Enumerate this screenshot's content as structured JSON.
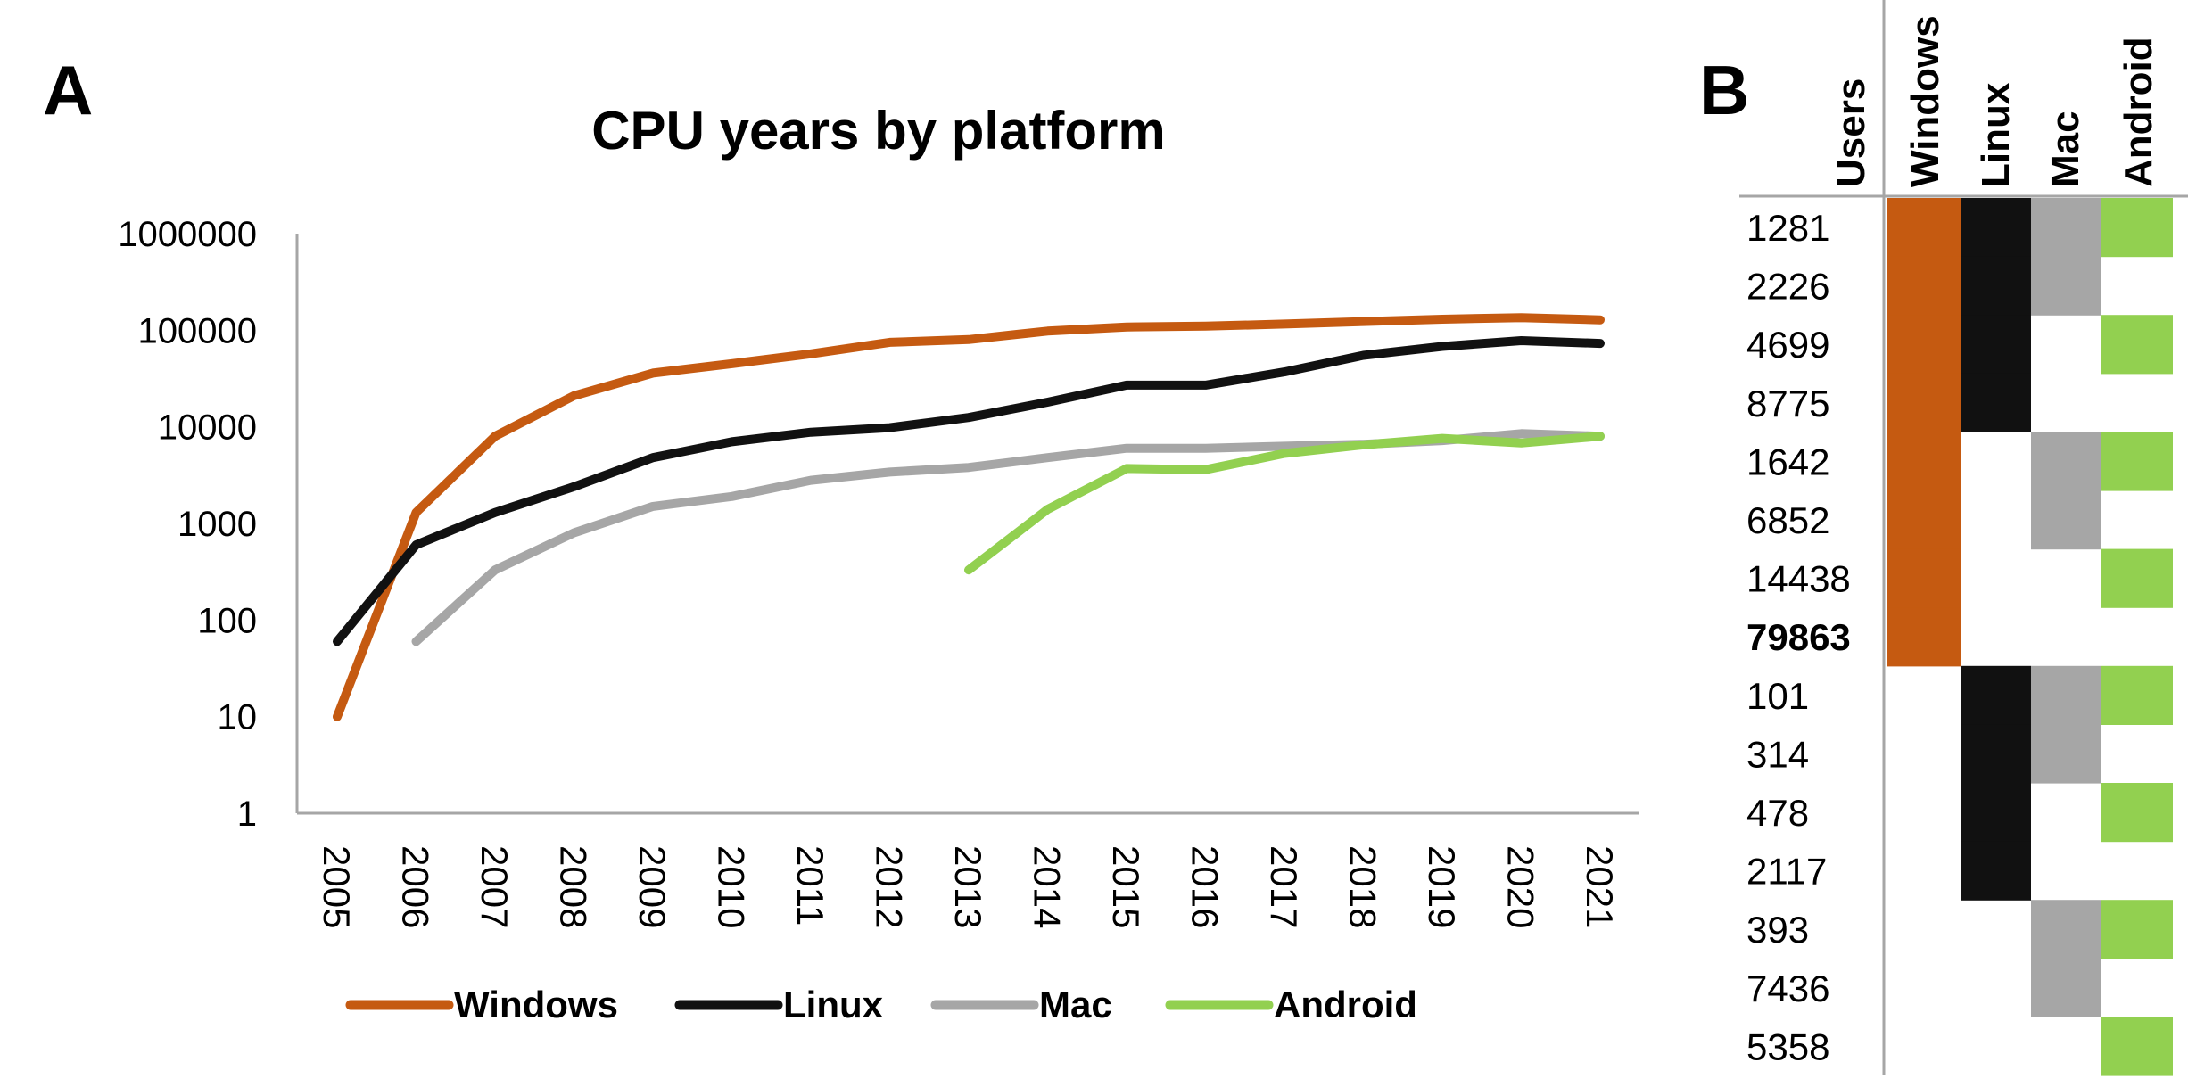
{
  "chart_data": [
    {
      "panel_label": "A",
      "type": "line",
      "title": "CPU years by platform",
      "xlabel": "",
      "ylabel": "",
      "y_scale": "log",
      "ylim": [
        1,
        1000000
      ],
      "y_ticks": [
        "1",
        "10",
        "100",
        "1000",
        "10000",
        "100000",
        "1000000"
      ],
      "x": [
        "2005",
        "2006",
        "2007",
        "2008",
        "2009",
        "2010",
        "2011",
        "2012",
        "2013",
        "2014",
        "2015",
        "2016",
        "2017",
        "2018",
        "2019",
        "2020",
        "2021"
      ],
      "grid": false,
      "legend_position": "bottom",
      "series": [
        {
          "name": "Windows",
          "color": "#C55A11",
          "values": [
            10,
            1300,
            8000,
            21000,
            36000,
            45000,
            57000,
            75000,
            80000,
            98000,
            108000,
            110000,
            116000,
            123000,
            130000,
            135000,
            128000
          ]
        },
        {
          "name": "Linux",
          "color": "#111111",
          "values": [
            60,
            600,
            1300,
            2400,
            4800,
            7000,
            8800,
            9800,
            12500,
            18000,
            27000,
            27000,
            37000,
            55000,
            68000,
            78000,
            73000
          ]
        },
        {
          "name": "Mac",
          "color": "#A6A6A6",
          "values": [
            null,
            60,
            330,
            800,
            1500,
            1900,
            2800,
            3400,
            3800,
            4800,
            6000,
            6000,
            6300,
            6600,
            7200,
            8500,
            8000
          ]
        },
        {
          "name": "Android",
          "color": "#92D050",
          "values": [
            null,
            null,
            null,
            null,
            null,
            null,
            null,
            null,
            330,
            1400,
            3700,
            3600,
            5300,
            6500,
            7600,
            6800,
            8000
          ]
        }
      ]
    },
    {
      "panel_label": "B",
      "type": "table",
      "columns": [
        "Users",
        "Windows",
        "Linux",
        "Mac",
        "Android"
      ],
      "rows": [
        {
          "users": "1281",
          "windows": true,
          "linux": true,
          "mac": true,
          "android": true
        },
        {
          "users": "2226",
          "windows": true,
          "linux": true,
          "mac": true,
          "android": false
        },
        {
          "users": "4699",
          "windows": true,
          "linux": true,
          "mac": false,
          "android": true
        },
        {
          "users": "8775",
          "windows": true,
          "linux": true,
          "mac": false,
          "android": false
        },
        {
          "users": "1642",
          "windows": true,
          "linux": false,
          "mac": true,
          "android": true
        },
        {
          "users": "6852",
          "windows": true,
          "linux": false,
          "mac": true,
          "android": false
        },
        {
          "users": "14438",
          "windows": true,
          "linux": false,
          "mac": false,
          "android": true
        },
        {
          "users": "79863",
          "windows": true,
          "linux": false,
          "mac": false,
          "android": false,
          "bold": true
        },
        {
          "users": "101",
          "windows": false,
          "linux": true,
          "mac": true,
          "android": true
        },
        {
          "users": "314",
          "windows": false,
          "linux": true,
          "mac": true,
          "android": false
        },
        {
          "users": "478",
          "windows": false,
          "linux": true,
          "mac": false,
          "android": true
        },
        {
          "users": "2117",
          "windows": false,
          "linux": true,
          "mac": false,
          "android": false
        },
        {
          "users": "393",
          "windows": false,
          "linux": false,
          "mac": true,
          "android": true
        },
        {
          "users": "7436",
          "windows": false,
          "linux": false,
          "mac": true,
          "android": false
        },
        {
          "users": "5358",
          "windows": false,
          "linux": false,
          "mac": false,
          "android": true
        }
      ]
    }
  ]
}
